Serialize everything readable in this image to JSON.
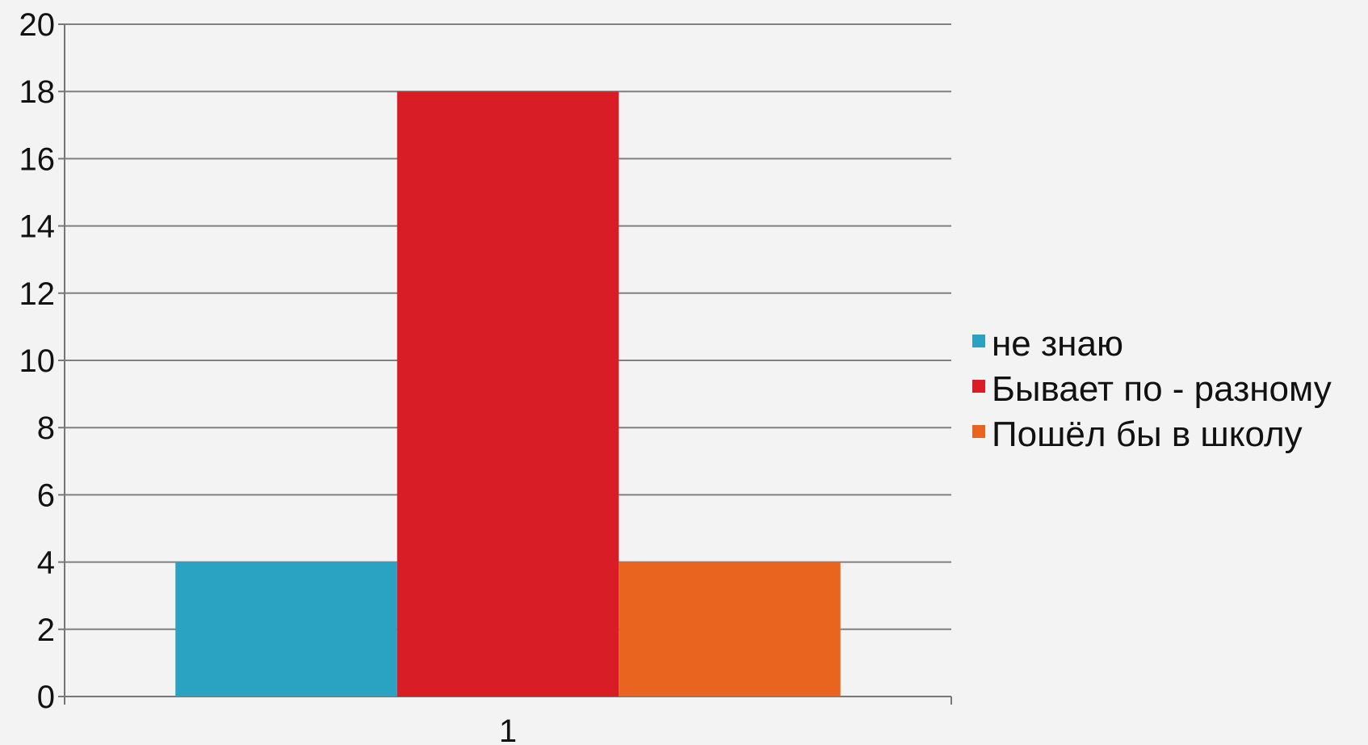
{
  "chart_data": {
    "type": "bar",
    "categories": [
      "1"
    ],
    "series": [
      {
        "name": "не знаю",
        "values": [
          4
        ],
        "color": "#2aa3c2"
      },
      {
        "name": "Бывает по - разному",
        "values": [
          18
        ],
        "color": "#d91d27"
      },
      {
        "name": "Пошёл бы в школу",
        "values": [
          4
        ],
        "color": "#e9651f"
      }
    ],
    "ylim": [
      0,
      20
    ],
    "yticks": [
      "0",
      "2",
      "4",
      "6",
      "8",
      "10",
      "12",
      "14",
      "16",
      "18",
      "20"
    ],
    "grid": true,
    "legend": "right",
    "title": "",
    "xlabel": "",
    "ylabel": ""
  }
}
